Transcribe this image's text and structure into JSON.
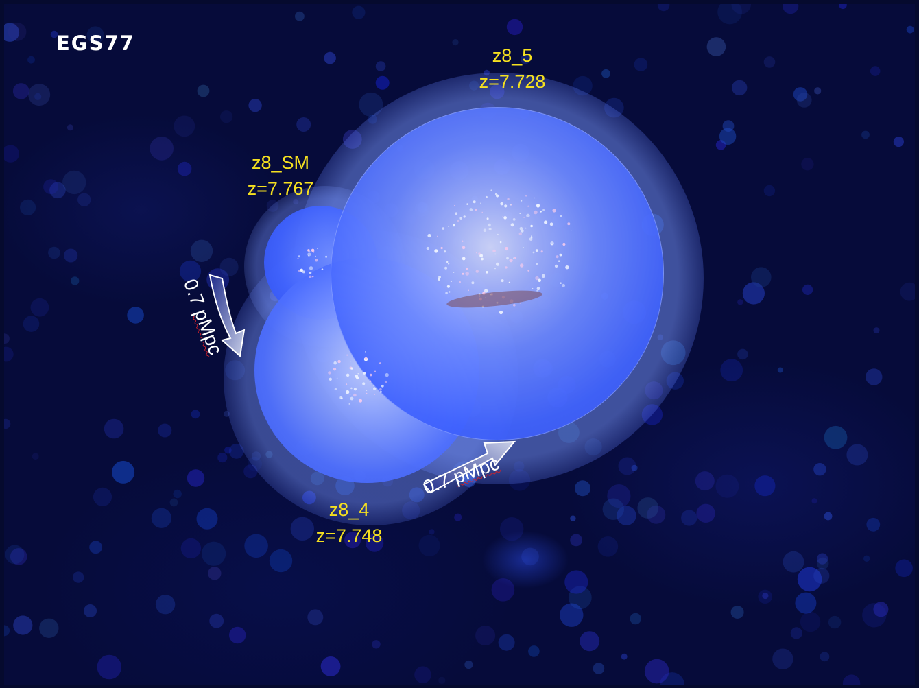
{
  "title": "EGS77",
  "galaxies": [
    {
      "name": "z8_5",
      "redshift": "z=7.728"
    },
    {
      "name": "z8_SM",
      "redshift": "z=7.767"
    },
    {
      "name": "z8_4",
      "redshift": "z=7.748"
    }
  ],
  "distances": [
    {
      "value": "0.7",
      "unit": "pMpc"
    },
    {
      "value": "0.7",
      "unit": "pMpc"
    }
  ],
  "colors": {
    "bubble": "#3a5cff",
    "background": "#060b3a",
    "label": "#f5e020"
  }
}
